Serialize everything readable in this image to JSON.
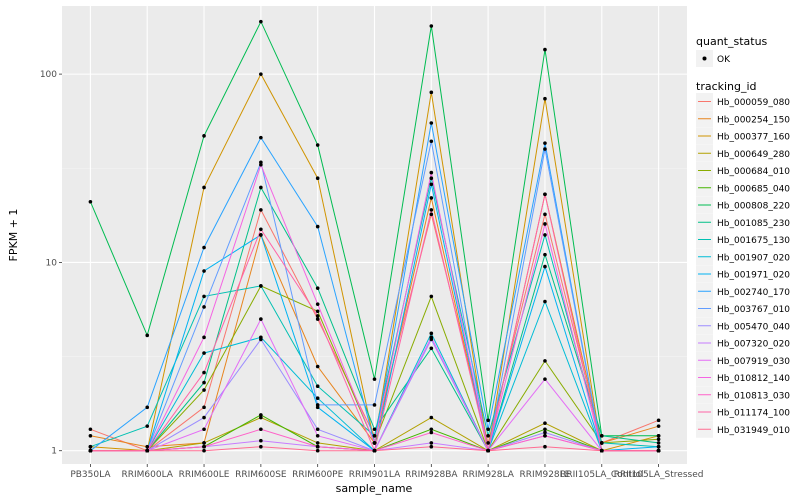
{
  "chart_data": {
    "type": "line",
    "xlabel": "sample_name",
    "ylabel": "FPKM + 1",
    "y_scale": "log10",
    "ylim": [
      0.85,
      230
    ],
    "grid": true,
    "legend_position": "right",
    "categories": [
      "PB350LA",
      "RRIM600LA",
      "RRIM600LE",
      "RRIM600SE",
      "RRIM600PE",
      "RRIM901LA",
      "RRIM928BA",
      "RRIM928LA",
      "RRIM928LE",
      "RRII105LA_Control",
      "RRII105LA_Stressed"
    ],
    "y_ticks": [
      1,
      10,
      100
    ],
    "y_tick_labels": [
      "1",
      "10",
      "100"
    ],
    "point_legend": {
      "title": "quant_status",
      "entries": [
        "OK"
      ]
    },
    "series_legend_title": "tracking_id",
    "series": [
      {
        "name": "Hb_000059_080",
        "color": "#F8766D",
        "values": [
          1.3,
          1.0,
          1.7,
          19,
          5.0,
          1.2,
          18,
          1.1,
          18,
          1.1,
          1.45
        ]
      },
      {
        "name": "Hb_000254_150",
        "color": "#E7851E",
        "values": [
          1.2,
          1.05,
          1.1,
          14,
          2.8,
          1.1,
          22,
          1.0,
          23,
          1.1,
          1.35
        ]
      },
      {
        "name": "Hb_000377_160",
        "color": "#D09400",
        "values": [
          1.05,
          1.0,
          25,
          100,
          28,
          1.1,
          80,
          1.0,
          74,
          1.0,
          1.2
        ]
      },
      {
        "name": "Hb_000649_280",
        "color": "#B2A100",
        "values": [
          1.0,
          1.0,
          1.1,
          1.5,
          1.1,
          1.0,
          1.5,
          1.0,
          1.4,
          1.0,
          1.0
        ]
      },
      {
        "name": "Hb_000684_010",
        "color": "#89AC00",
        "values": [
          1.0,
          1.0,
          2.1,
          7.5,
          5.5,
          1.1,
          6.6,
          1.0,
          3.0,
          1.1,
          1.15
        ]
      },
      {
        "name": "Hb_000685_040",
        "color": "#45B500",
        "values": [
          1.0,
          1.0,
          1.05,
          1.55,
          1.05,
          1.0,
          1.3,
          1.0,
          1.3,
          1.0,
          1.0
        ]
      },
      {
        "name": "Hb_000808_220",
        "color": "#00BC51",
        "values": [
          21,
          4.1,
          47,
          190,
          42,
          2.4,
          180,
          1.45,
          135,
          1.2,
          1.2
        ]
      },
      {
        "name": "Hb_001085_230",
        "color": "#00C087",
        "values": [
          1.0,
          1.0,
          2.3,
          25,
          7.3,
          1.3,
          3.5,
          1.0,
          11,
          1.2,
          1.1
        ]
      },
      {
        "name": "Hb_001675_130",
        "color": "#00C0B2",
        "values": [
          1.05,
          1.35,
          6.6,
          7.5,
          2.2,
          1.2,
          28,
          1.2,
          14,
          1.1,
          1.05
        ]
      },
      {
        "name": "Hb_001907_020",
        "color": "#00BCD6",
        "values": [
          1.0,
          1.0,
          3.3,
          4.0,
          1.9,
          1.0,
          4.2,
          1.0,
          6.2,
          1.0,
          1.0
        ]
      },
      {
        "name": "Hb_001971_020",
        "color": "#00B3F2",
        "values": [
          1.0,
          1.0,
          9.0,
          14,
          1.7,
          1.0,
          26,
          1.0,
          9.5,
          1.0,
          1.05
        ]
      },
      {
        "name": "Hb_002740_170",
        "color": "#29A3FF",
        "values": [
          1.0,
          1.7,
          12,
          46,
          15.5,
          1.1,
          55,
          1.3,
          43,
          1.0,
          1.0
        ]
      },
      {
        "name": "Hb_003767_010",
        "color": "#619CFF",
        "values": [
          1.0,
          1.0,
          5.8,
          34,
          1.75,
          1.75,
          44,
          1.0,
          40,
          1.0,
          1.0
        ]
      },
      {
        "name": "Hb_005470_040",
        "color": "#9C8DFF",
        "values": [
          1.0,
          1.0,
          1.5,
          3.9,
          1.3,
          1.0,
          3.9,
          1.0,
          1.25,
          1.0,
          1.0
        ]
      },
      {
        "name": "Hb_007320_020",
        "color": "#C77CFF",
        "values": [
          1.0,
          1.0,
          1.05,
          1.13,
          1.05,
          1.0,
          1.1,
          1.0,
          1.2,
          1.0,
          1.0
        ]
      },
      {
        "name": "Hb_007919_030",
        "color": "#E46DF6",
        "values": [
          1.0,
          1.0,
          1.3,
          5.0,
          1.2,
          1.0,
          4.0,
          1.0,
          2.4,
          1.0,
          1.0
        ]
      },
      {
        "name": "Hb_010812_140",
        "color": "#F564E3",
        "values": [
          1.0,
          1.0,
          4.0,
          33,
          6.0,
          1.1,
          30,
          1.0,
          16,
          1.0,
          1.0
        ]
      },
      {
        "name": "Hb_010813_030",
        "color": "#FF61C9",
        "values": [
          1.0,
          1.0,
          1.05,
          1.3,
          1.05,
          1.0,
          1.25,
          1.0,
          1.2,
          1.0,
          1.0
        ]
      },
      {
        "name": "Hb_011174_100",
        "color": "#FF64A7",
        "values": [
          1.0,
          1.0,
          2.6,
          15,
          5.2,
          1.0,
          19,
          1.0,
          23,
          1.0,
          1.0
        ]
      },
      {
        "name": "Hb_031949_010",
        "color": "#FF6C91",
        "values": [
          1.0,
          1.0,
          1.0,
          1.05,
          1.0,
          1.0,
          1.05,
          1.0,
          1.05,
          1.0,
          1.0
        ]
      }
    ]
  }
}
